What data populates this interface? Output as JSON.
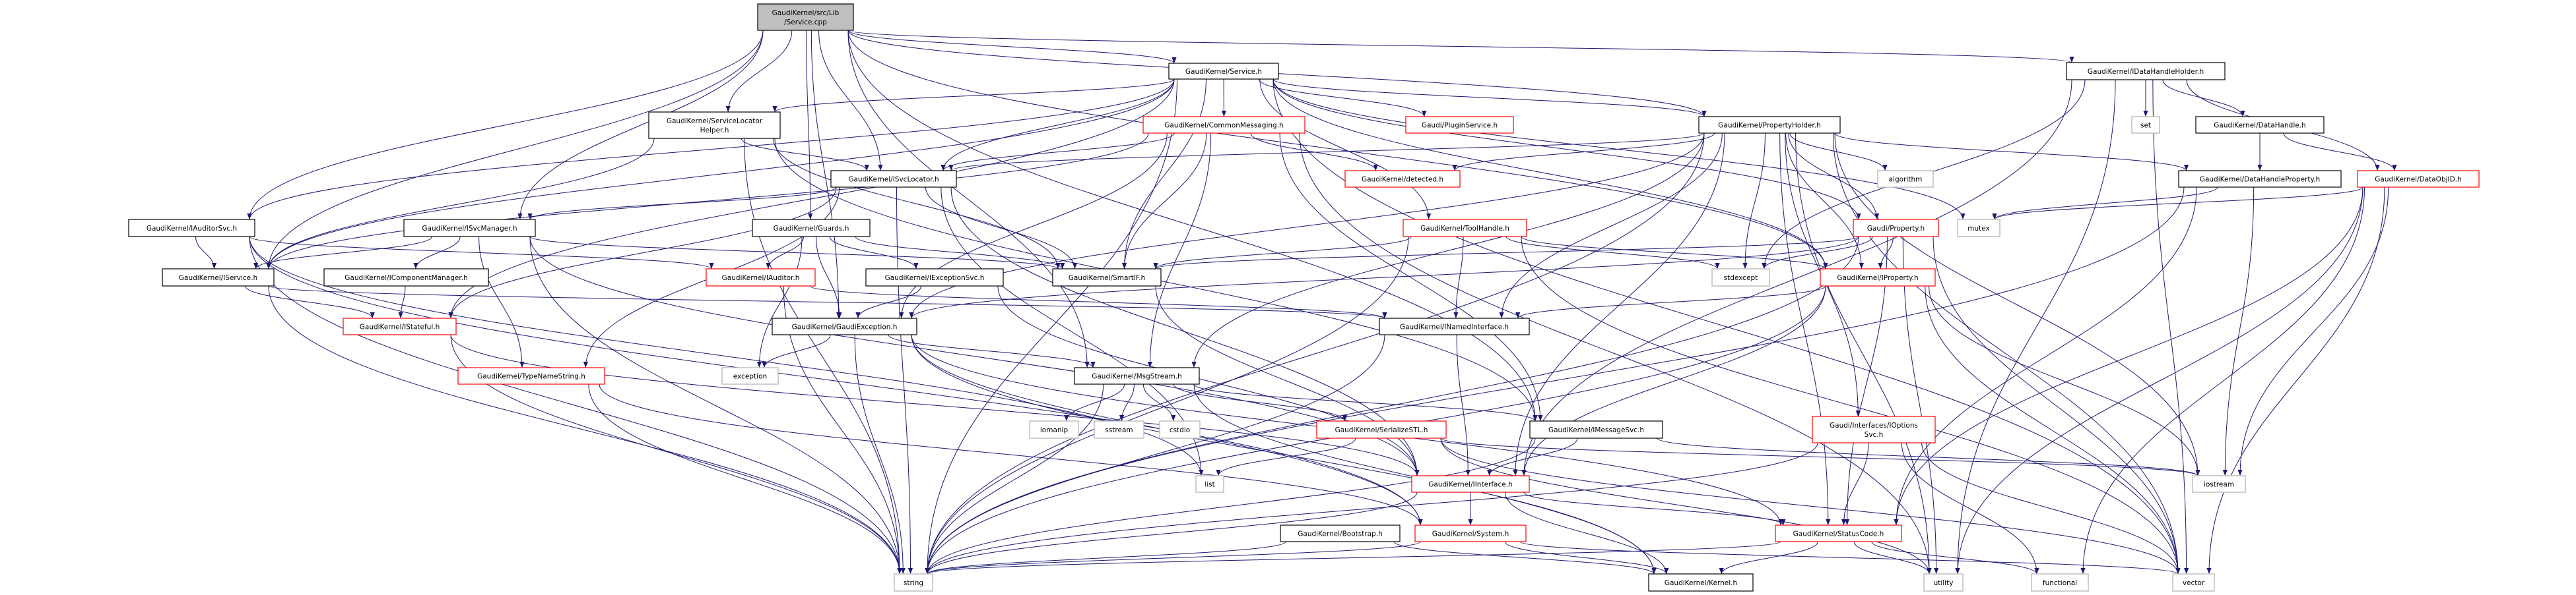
{
  "graph_type": "include-dependency-graph",
  "colors": {
    "edge": "#191970",
    "root_fill": "#bfbfbf",
    "node_border": "#000000",
    "truncated_border": "#ff0000",
    "system_border": "#bfbfbf",
    "node_fill": "#ffffff"
  },
  "nodes": [
    {
      "id": "root",
      "label": [
        "GaudiKernel/src/Lib",
        "/Service.cpp"
      ],
      "kind": "root"
    },
    {
      "id": "service",
      "label": [
        "GaudiKernel/Service.h"
      ],
      "kind": "normal"
    },
    {
      "id": "idhh",
      "label": [
        "GaudiKernel/IDataHandleHolder.h"
      ],
      "kind": "normal"
    },
    {
      "id": "slh",
      "label": [
        "GaudiKernel/ServiceLocator",
        "Helper.h"
      ],
      "kind": "normal"
    },
    {
      "id": "commonmsg",
      "label": [
        "GaudiKernel/CommonMessaging.h"
      ],
      "kind": "truncated"
    },
    {
      "id": "plugin",
      "label": [
        "Gaudi/PluginService.h"
      ],
      "kind": "truncated"
    },
    {
      "id": "propholder",
      "label": [
        "GaudiKernel/PropertyHolder.h"
      ],
      "kind": "normal"
    },
    {
      "id": "set",
      "label": [
        "set"
      ],
      "kind": "system"
    },
    {
      "id": "datahandle",
      "label": [
        "GaudiKernel/DataHandle.h"
      ],
      "kind": "normal"
    },
    {
      "id": "isvclocator",
      "label": [
        "GaudiKernel/ISvcLocator.h"
      ],
      "kind": "normal"
    },
    {
      "id": "detected",
      "label": [
        "GaudiKernel/detected.h"
      ],
      "kind": "truncated"
    },
    {
      "id": "algorithm",
      "label": [
        "algorithm"
      ],
      "kind": "system"
    },
    {
      "id": "dhprop",
      "label": [
        "GaudiKernel/DataHandleProperty.h"
      ],
      "kind": "normal"
    },
    {
      "id": "dataobjid",
      "label": [
        "GaudiKernel/DataObjID.h"
      ],
      "kind": "truncated"
    },
    {
      "id": "iauditorsvc",
      "label": [
        "GaudiKernel/IAuditorSvc.h"
      ],
      "kind": "normal"
    },
    {
      "id": "isvcmanager",
      "label": [
        "GaudiKernel/ISvcManager.h"
      ],
      "kind": "normal"
    },
    {
      "id": "guards",
      "label": [
        "GaudiKernel/Guards.h"
      ],
      "kind": "normal"
    },
    {
      "id": "toolhandle",
      "label": [
        "GaudiKernel/ToolHandle.h"
      ],
      "kind": "truncated"
    },
    {
      "id": "property",
      "label": [
        "Gaudi/Property.h"
      ],
      "kind": "truncated"
    },
    {
      "id": "mutex",
      "label": [
        "mutex"
      ],
      "kind": "system"
    },
    {
      "id": "iservice",
      "label": [
        "GaudiKernel/IService.h"
      ],
      "kind": "normal"
    },
    {
      "id": "icompmgr",
      "label": [
        "GaudiKernel/IComponentManager.h"
      ],
      "kind": "normal"
    },
    {
      "id": "iauditor",
      "label": [
        "GaudiKernel/IAuditor.h"
      ],
      "kind": "truncated"
    },
    {
      "id": "iexceptionsvc",
      "label": [
        "GaudiKernel/IExceptionSvc.h"
      ],
      "kind": "normal"
    },
    {
      "id": "smartif",
      "label": [
        "GaudiKernel/SmartIF.h"
      ],
      "kind": "normal"
    },
    {
      "id": "stdexcept",
      "label": [
        "stdexcept"
      ],
      "kind": "system"
    },
    {
      "id": "iproperty",
      "label": [
        "GaudiKernel/IProperty.h"
      ],
      "kind": "truncated"
    },
    {
      "id": "istateful",
      "label": [
        "GaudiKernel/IStateful.h"
      ],
      "kind": "truncated"
    },
    {
      "id": "gaudiexc",
      "label": [
        "GaudiKernel/GaudiException.h"
      ],
      "kind": "normal"
    },
    {
      "id": "inamed",
      "label": [
        "GaudiKernel/INamedInterface.h"
      ],
      "kind": "normal"
    },
    {
      "id": "typename",
      "label": [
        "GaudiKernel/TypeNameString.h"
      ],
      "kind": "truncated"
    },
    {
      "id": "exception",
      "label": [
        "exception"
      ],
      "kind": "system"
    },
    {
      "id": "msgstream",
      "label": [
        "GaudiKernel/MsgStream.h"
      ],
      "kind": "normal"
    },
    {
      "id": "ioptionssvc",
      "label": [
        "Gaudi/Interfaces/IOptions",
        "Svc.h"
      ],
      "kind": "truncated"
    },
    {
      "id": "iomanip",
      "label": [
        "iomanip"
      ],
      "kind": "system"
    },
    {
      "id": "sstream",
      "label": [
        "sstream"
      ],
      "kind": "system"
    },
    {
      "id": "cstdio",
      "label": [
        "cstdio"
      ],
      "kind": "system"
    },
    {
      "id": "serializestl",
      "label": [
        "GaudiKernel/SerializeSTL.h"
      ],
      "kind": "truncated"
    },
    {
      "id": "imessagesvc",
      "label": [
        "GaudiKernel/IMessageSvc.h"
      ],
      "kind": "normal"
    },
    {
      "id": "list",
      "label": [
        "list"
      ],
      "kind": "system"
    },
    {
      "id": "iinterface",
      "label": [
        "GaudiKernel/IInterface.h"
      ],
      "kind": "truncated"
    },
    {
      "id": "iostream",
      "label": [
        "iostream"
      ],
      "kind": "system"
    },
    {
      "id": "bootstrap",
      "label": [
        "GaudiKernel/Bootstrap.h"
      ],
      "kind": "normal"
    },
    {
      "id": "system",
      "label": [
        "GaudiKernel/System.h"
      ],
      "kind": "truncated"
    },
    {
      "id": "statuscode",
      "label": [
        "GaudiKernel/StatusCode.h"
      ],
      "kind": "truncated"
    },
    {
      "id": "string",
      "label": [
        "string"
      ],
      "kind": "system"
    },
    {
      "id": "kernel",
      "label": [
        "GaudiKernel/Kernel.h"
      ],
      "kind": "normal"
    },
    {
      "id": "utility",
      "label": [
        "utility"
      ],
      "kind": "system"
    },
    {
      "id": "functional",
      "label": [
        "functional"
      ],
      "kind": "system"
    },
    {
      "id": "vector",
      "label": [
        "vector"
      ],
      "kind": "system"
    }
  ],
  "edges": [
    [
      "root",
      "service"
    ],
    [
      "root",
      "slh"
    ],
    [
      "root",
      "isvclocator"
    ],
    [
      "root",
      "isvcmanager"
    ],
    [
      "root",
      "iauditorsvc"
    ],
    [
      "root",
      "guards"
    ],
    [
      "root",
      "gaudiexc"
    ],
    [
      "root",
      "msgstream"
    ],
    [
      "root",
      "propholder"
    ],
    [
      "root",
      "iproperty"
    ],
    [
      "root",
      "imessagesvc"
    ],
    [
      "root",
      "idhh"
    ],
    [
      "root",
      "iservice"
    ],
    [
      "service",
      "slh"
    ],
    [
      "service",
      "iauditorsvc"
    ],
    [
      "service",
      "iservice"
    ],
    [
      "service",
      "isvclocator"
    ],
    [
      "service",
      "commonmsg"
    ],
    [
      "service",
      "plugin"
    ],
    [
      "service",
      "propholder"
    ],
    [
      "service",
      "toolhandle"
    ],
    [
      "service",
      "smartif"
    ],
    [
      "service",
      "istateful"
    ],
    [
      "service",
      "iproperty"
    ],
    [
      "service",
      "property"
    ],
    [
      "service",
      "string"
    ],
    [
      "service",
      "vector"
    ],
    [
      "service",
      "mutex"
    ],
    [
      "slh",
      "isvclocator"
    ],
    [
      "slh",
      "iservice"
    ],
    [
      "slh",
      "smartif"
    ],
    [
      "slh",
      "string"
    ],
    [
      "slh",
      "imessagesvc"
    ],
    [
      "commonmsg",
      "isvclocator"
    ],
    [
      "commonmsg",
      "detected"
    ],
    [
      "commonmsg",
      "msgstream"
    ],
    [
      "commonmsg",
      "imessagesvc"
    ],
    [
      "commonmsg",
      "smartif"
    ],
    [
      "commonmsg",
      "iservice"
    ],
    [
      "commonmsg",
      "gaudiexc"
    ],
    [
      "commonmsg",
      "utility"
    ],
    [
      "propholder",
      "property"
    ],
    [
      "propholder",
      "iproperty"
    ],
    [
      "propholder",
      "algorithm"
    ],
    [
      "propholder",
      "detected"
    ],
    [
      "propholder",
      "gaudiexc"
    ],
    [
      "propholder",
      "inamed"
    ],
    [
      "propholder",
      "ioptionssvc"
    ],
    [
      "propholder",
      "dhprop"
    ],
    [
      "propholder",
      "msgstream"
    ],
    [
      "propholder",
      "iinterface"
    ],
    [
      "propholder",
      "string"
    ],
    [
      "propholder",
      "stdexcept"
    ],
    [
      "propholder",
      "vector"
    ],
    [
      "propholder",
      "utility"
    ],
    [
      "propholder",
      "iostream"
    ],
    [
      "propholder",
      "statuscode"
    ],
    [
      "propholder",
      "isvclocator"
    ],
    [
      "isvclocator",
      "isvcmanager"
    ],
    [
      "isvclocator",
      "smartif"
    ],
    [
      "isvclocator",
      "iinterface"
    ],
    [
      "isvclocator",
      "typename"
    ],
    [
      "isvclocator",
      "string"
    ],
    [
      "isvclocator",
      "istateful"
    ],
    [
      "isvclocator",
      "list"
    ],
    [
      "isvcmanager",
      "iservice"
    ],
    [
      "isvcmanager",
      "icompmgr"
    ],
    [
      "isvcmanager",
      "typename"
    ],
    [
      "isvcmanager",
      "string"
    ],
    [
      "isvcmanager",
      "smartif"
    ],
    [
      "isvcmanager",
      "iinterface"
    ],
    [
      "iauditorsvc",
      "iservice"
    ],
    [
      "iauditorsvc",
      "iauditor"
    ],
    [
      "iauditorsvc",
      "string"
    ],
    [
      "iauditorsvc",
      "list"
    ],
    [
      "iauditorsvc",
      "system"
    ],
    [
      "iservice",
      "istateful"
    ],
    [
      "iservice",
      "inamed"
    ],
    [
      "iservice",
      "string"
    ],
    [
      "icompmgr",
      "istateful"
    ],
    [
      "guards",
      "iauditor"
    ],
    [
      "guards",
      "iexceptionsvc"
    ],
    [
      "guards",
      "smartif"
    ],
    [
      "guards",
      "gaudiexc"
    ],
    [
      "guards",
      "exception"
    ],
    [
      "iauditor",
      "inamed"
    ],
    [
      "iauditor",
      "string"
    ],
    [
      "iexceptionsvc",
      "gaudiexc"
    ],
    [
      "iexceptionsvc",
      "iinterface"
    ],
    [
      "gaudiexc",
      "msgstream"
    ],
    [
      "gaudiexc",
      "exception"
    ],
    [
      "gaudiexc",
      "string"
    ],
    [
      "gaudiexc",
      "statuscode"
    ],
    [
      "gaudiexc",
      "kernel"
    ],
    [
      "gaudiexc",
      "system"
    ],
    [
      "istateful",
      "iinterface"
    ],
    [
      "istateful",
      "string"
    ],
    [
      "typename",
      "string"
    ],
    [
      "typename",
      "system"
    ],
    [
      "smartif",
      "iinterface"
    ],
    [
      "toolhandle",
      "inamed"
    ],
    [
      "toolhandle",
      "smartif"
    ],
    [
      "toolhandle",
      "stdexcept"
    ],
    [
      "toolhandle",
      "string"
    ],
    [
      "toolhandle",
      "vector"
    ],
    [
      "toolhandle",
      "iproperty"
    ],
    [
      "inamed",
      "iinterface"
    ],
    [
      "inamed",
      "string"
    ],
    [
      "msgstream",
      "iomanip"
    ],
    [
      "msgstream",
      "sstream"
    ],
    [
      "msgstream",
      "cstdio"
    ],
    [
      "msgstream",
      "serializestl"
    ],
    [
      "msgstream",
      "imessagesvc"
    ],
    [
      "msgstream",
      "string"
    ],
    [
      "msgstream",
      "kernel"
    ],
    [
      "serializestl",
      "list"
    ],
    [
      "serializestl",
      "vector"
    ],
    [
      "serializestl",
      "iostream"
    ],
    [
      "serializestl",
      "utility"
    ],
    [
      "imessagesvc",
      "iinterface"
    ],
    [
      "imessagesvc",
      "iostream"
    ],
    [
      "imessagesvc",
      "string"
    ],
    [
      "iinterface",
      "system"
    ],
    [
      "iinterface",
      "statuscode"
    ],
    [
      "iinterface",
      "kernel"
    ],
    [
      "iinterface",
      "string"
    ],
    [
      "bootstrap",
      "string"
    ],
    [
      "bootstrap",
      "kernel"
    ],
    [
      "system",
      "string"
    ],
    [
      "system",
      "kernel"
    ],
    [
      "system",
      "vector"
    ],
    [
      "statuscode",
      "kernel"
    ],
    [
      "statuscode",
      "utility"
    ],
    [
      "statuscode",
      "functional"
    ],
    [
      "statuscode",
      "string"
    ],
    [
      "idhh",
      "datahandle"
    ],
    [
      "idhh",
      "dataobjid"
    ],
    [
      "idhh",
      "set"
    ],
    [
      "idhh",
      "vector"
    ],
    [
      "idhh",
      "iinterface"
    ],
    [
      "idhh",
      "stdexcept"
    ],
    [
      "idhh",
      "utility"
    ],
    [
      "datahandle",
      "dhprop"
    ],
    [
      "datahandle",
      "dataobjid"
    ],
    [
      "dhprop",
      "mutex"
    ],
    [
      "dhprop",
      "iostream"
    ],
    [
      "dhprop",
      "statuscode"
    ],
    [
      "dhprop",
      "string"
    ],
    [
      "dataobjid",
      "mutex"
    ],
    [
      "dataobjid",
      "iostream"
    ],
    [
      "dataobjid",
      "statuscode"
    ],
    [
      "dataobjid",
      "utility"
    ],
    [
      "dataobjid",
      "vector"
    ],
    [
      "dataobjid",
      "functional"
    ],
    [
      "property",
      "iproperty"
    ],
    [
      "property",
      "stdexcept"
    ],
    [
      "property",
      "smartif"
    ],
    [
      "property",
      "gaudiexc"
    ],
    [
      "property",
      "string"
    ],
    [
      "property",
      "utility"
    ],
    [
      "property",
      "vector"
    ],
    [
      "property",
      "statuscode"
    ],
    [
      "iproperty",
      "inamed"
    ],
    [
      "iproperty",
      "iinterface"
    ],
    [
      "iproperty",
      "string"
    ],
    [
      "iproperty",
      "vector"
    ],
    [
      "iproperty",
      "iostream"
    ],
    [
      "ioptionssvc",
      "string"
    ],
    [
      "ioptionssvc",
      "vector"
    ],
    [
      "ioptionssvc",
      "functional"
    ],
    [
      "ioptionssvc",
      "statuscode"
    ]
  ]
}
